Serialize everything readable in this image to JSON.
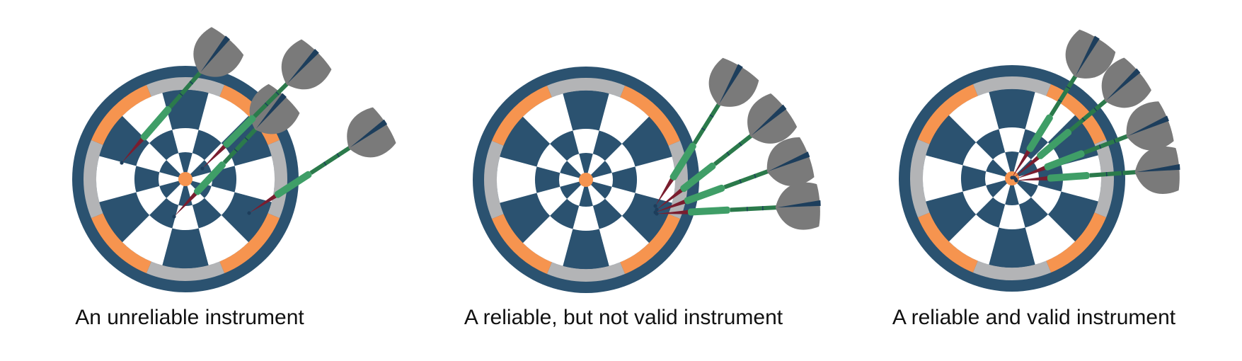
{
  "colors": {
    "navy": "#2b5270",
    "orange": "#f6944f",
    "gray_ring": "#b3b4b6",
    "white": "#ffffff",
    "dart_green": "#3f9e67",
    "dart_dark_green": "#2b7a4b",
    "flight_gray": "#7a7a7a",
    "flight_stripe": "#1d3e5c",
    "tip_red": "#7a1d2e"
  },
  "panels": [
    {
      "caption": "An unreliable instrument"
    },
    {
      "caption": "A reliable, but not valid instrument"
    },
    {
      "caption": "A reliable and valid instrument"
    }
  ]
}
